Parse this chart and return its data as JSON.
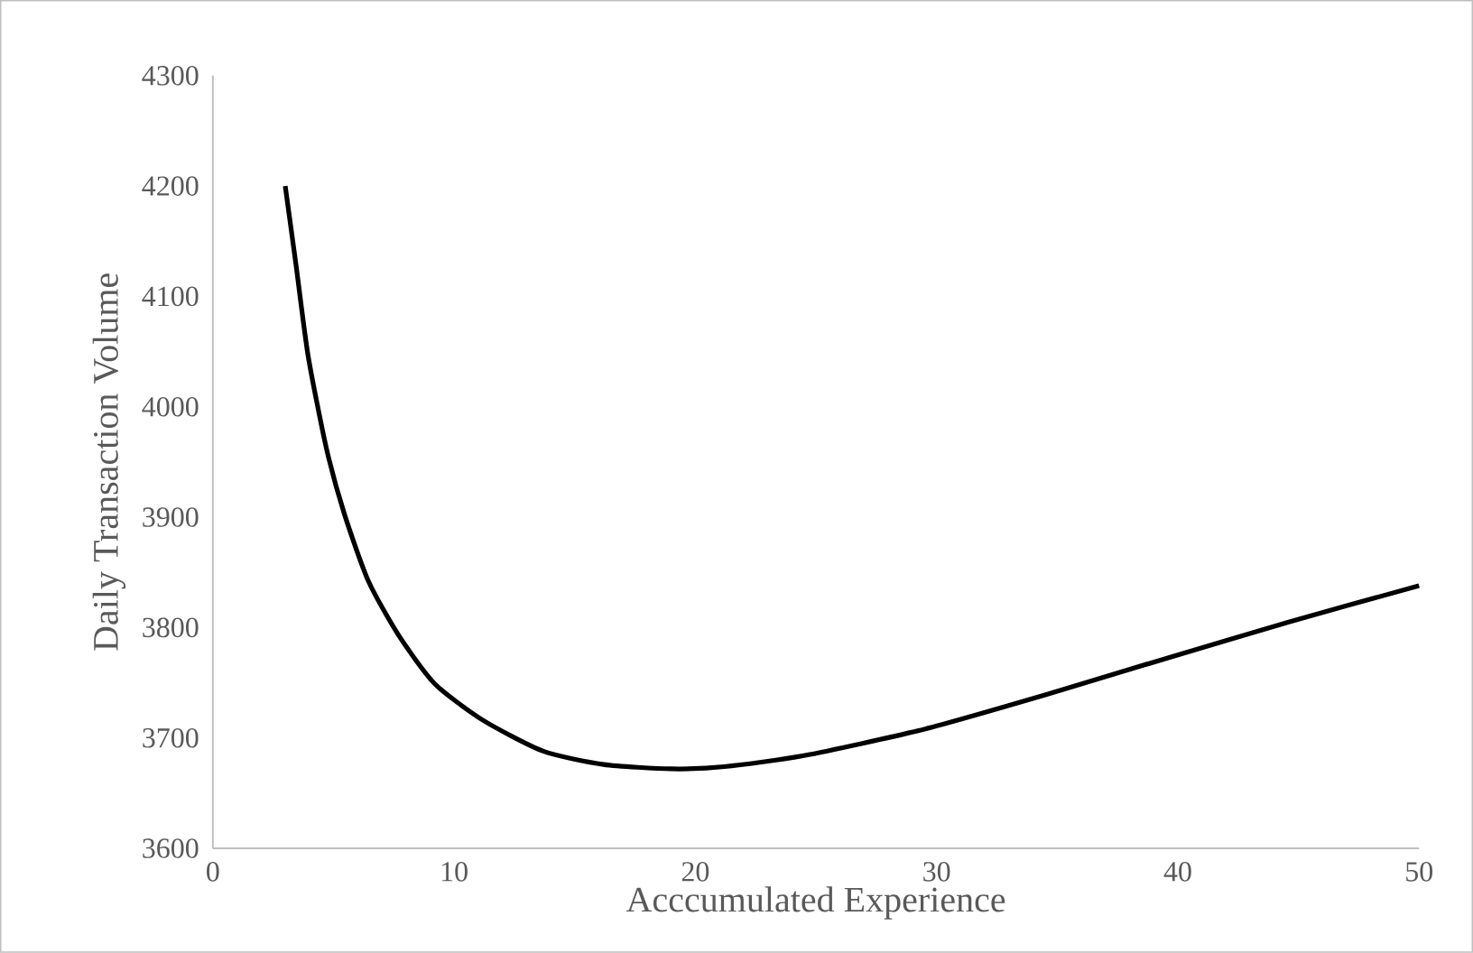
{
  "chart_data": {
    "type": "line",
    "xlabel": "Acccumulated Experience",
    "ylabel": "Daily Transaction Volume",
    "x": [
      3,
      3.45,
      3.95,
      4.7,
      5.45,
      6.45,
      7.7,
      9.2,
      11.2,
      13.7,
      16.2,
      19,
      21.2,
      24.5,
      29.5,
      34.5,
      39.5,
      44.6,
      50
    ],
    "series": [
      {
        "color": "#000000",
        "values": [
          4200,
          4128,
          4046,
          3963,
          3903,
          3842,
          3793,
          3749,
          3716,
          3688,
          3676,
          3672,
          3674,
          3684,
          3708,
          3739,
          3772,
          3805,
          3838
        ]
      }
    ],
    "xlim": [
      0,
      50
    ],
    "xticks": [
      0,
      10,
      20,
      30,
      40,
      50
    ],
    "ylim": [
      3600,
      4300
    ],
    "yticks": [
      3600,
      3700,
      3800,
      3900,
      4000,
      4100,
      4200,
      4300
    ],
    "grid": false,
    "marker": "none",
    "line_style": "solid"
  }
}
